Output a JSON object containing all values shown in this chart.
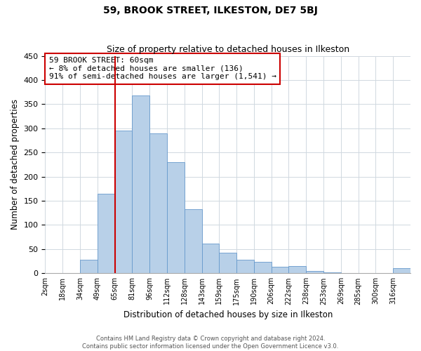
{
  "title": "59, BROOK STREET, ILKESTON, DE7 5BJ",
  "subtitle": "Size of property relative to detached houses in Ilkeston",
  "xlabel": "Distribution of detached houses by size in Ilkeston",
  "ylabel": "Number of detached properties",
  "bar_labels": [
    "2sqm",
    "18sqm",
    "34sqm",
    "49sqm",
    "65sqm",
    "81sqm",
    "96sqm",
    "112sqm",
    "128sqm",
    "143sqm",
    "159sqm",
    "175sqm",
    "190sqm",
    "206sqm",
    "222sqm",
    "238sqm",
    "253sqm",
    "269sqm",
    "285sqm",
    "300sqm",
    "316sqm"
  ],
  "bar_values": [
    0,
    0,
    28,
    165,
    295,
    368,
    290,
    230,
    133,
    62,
    43,
    28,
    23,
    14,
    15,
    5,
    2,
    0,
    0,
    0,
    10
  ],
  "bar_color": "#b8d0e8",
  "vline_color": "#cc0000",
  "vline_pos": 3.5,
  "ylim": [
    0,
    450
  ],
  "yticks": [
    0,
    50,
    100,
    150,
    200,
    250,
    300,
    350,
    400,
    450
  ],
  "annotation_title": "59 BROOK STREET: 60sqm",
  "annotation_line1": "← 8% of detached houses are smaller (136)",
  "annotation_line2": "91% of semi-detached houses are larger (1,541) →",
  "footer_line1": "Contains HM Land Registry data © Crown copyright and database right 2024.",
  "footer_line2": "Contains public sector information licensed under the Open Government Licence v3.0."
}
